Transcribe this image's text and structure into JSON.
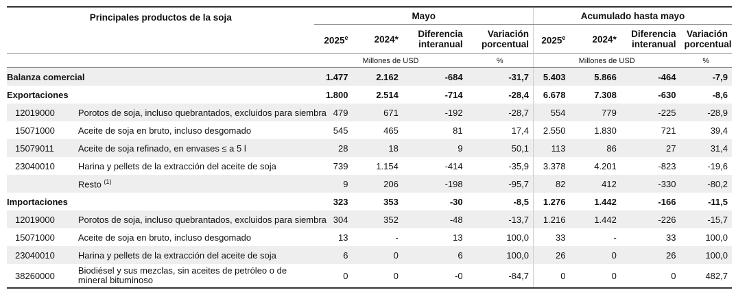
{
  "table": {
    "title": "Principales productos de la soja",
    "groups": {
      "month": "Mayo",
      "cumulative": "Acumulado hasta mayo"
    },
    "columns": {
      "y2025": "2025",
      "y2025_sup": "e",
      "y2024": "2024*",
      "diff": "Diferencia interanual",
      "var": "Variación porcentual"
    },
    "units": {
      "usd": "Millones de USD",
      "pct": "%"
    },
    "rows": [
      {
        "code": "",
        "desc": "Balanza comercial",
        "v": [
          "1.477",
          "2.162",
          "-684",
          "-31,7",
          "5.403",
          "5.866",
          "-464",
          "-7,9"
        ]
      },
      {
        "code": "",
        "desc": "Exportaciones",
        "v": [
          "1.800",
          "2.514",
          "-714",
          "-28,4",
          "6.678",
          "7.308",
          "-630",
          "-8,6"
        ]
      },
      {
        "code": "12019000",
        "desc": "Porotos de soja, incluso quebrantados, excluidos para siembra",
        "v": [
          "479",
          "671",
          "-192",
          "-28,7",
          "554",
          "779",
          "-225",
          "-28,9"
        ]
      },
      {
        "code": "15071000",
        "desc": "Aceite de soja en bruto, incluso desgomado",
        "v": [
          "545",
          "465",
          "81",
          "17,4",
          "2.550",
          "1.830",
          "721",
          "39,4"
        ]
      },
      {
        "code": "15079011",
        "desc": "Aceite de soja refinado, en envases ≤ a 5 l",
        "v": [
          "28",
          "18",
          "9",
          "50,1",
          "113",
          "86",
          "27",
          "31,4"
        ]
      },
      {
        "code": "23040010",
        "desc": "Harina y pellets de la extracción del aceite de soja",
        "v": [
          "739",
          "1.154",
          "-414",
          "-35,9",
          "3.378",
          "4.201",
          "-823",
          "-19,6"
        ]
      },
      {
        "code": "",
        "desc": "Resto",
        "note": "(1)",
        "v": [
          "9",
          "206",
          "-198",
          "-95,7",
          "82",
          "412",
          "-330",
          "-80,2"
        ]
      },
      {
        "code": "",
        "desc": "Importaciones",
        "v": [
          "323",
          "353",
          "-30",
          "-8,5",
          "1.276",
          "1.442",
          "-166",
          "-11,5"
        ]
      },
      {
        "code": "12019000",
        "desc": "Porotos de soja, incluso quebrantados, excluidos para siembra",
        "v": [
          "304",
          "352",
          "-48",
          "-13,7",
          "1.216",
          "1.442",
          "-226",
          "-15,7"
        ]
      },
      {
        "code": "15071000",
        "desc": "Aceite de soja en bruto, incluso desgomado",
        "v": [
          "13",
          "-",
          "13",
          "100,0",
          "33",
          "-",
          "33",
          "100,0"
        ]
      },
      {
        "code": "23040010",
        "desc": "Harina y pellets de la extracción del aceite de soja",
        "v": [
          "6",
          "0",
          "6",
          "100,0",
          "26",
          "0",
          "26",
          "100,0"
        ]
      },
      {
        "code": "38260000",
        "desc": "Biodiésel y sus mezclas, sin aceites de petróleo o de mineral bituminoso",
        "v": [
          "0",
          "0",
          "-0",
          "-84,7",
          "0",
          "0",
          "0",
          "482,7"
        ]
      }
    ]
  }
}
